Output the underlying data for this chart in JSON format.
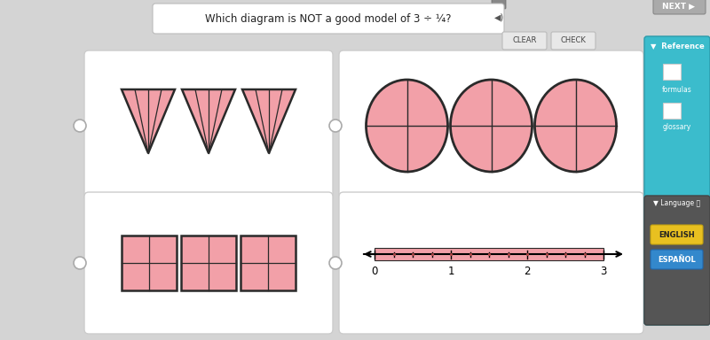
{
  "bg_color": "#d4d4d4",
  "card_color": "#ffffff",
  "card_edge_color": "#cccccc",
  "title_text": "Which diagram is NOT a good model of 3 ÷ ¼?",
  "title_bg": "#ffffff",
  "pink_fill": "#f2a0a8",
  "pink_stroke": "#2a2a2a",
  "radio_color": "#ffffff",
  "radio_edge": "#aaaaaa",
  "num_line_tick_labels": [
    "0",
    "1",
    "2",
    "3"
  ],
  "ref_panel_color": "#3bbccc",
  "ref_panel_dark": "#555555",
  "eng_btn_color": "#e8c020",
  "esp_btn_color": "#3388cc",
  "next_btn_color": "#aaaaaa",
  "clear_check_color": "#e0e0e0"
}
